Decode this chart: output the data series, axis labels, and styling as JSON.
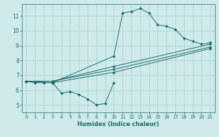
{
  "xlabel": "Humidex (Indice chaleur)",
  "xlim": [
    -0.5,
    21.5
  ],
  "ylim": [
    4.5,
    11.8
  ],
  "xticks": [
    0,
    1,
    2,
    3,
    4,
    5,
    6,
    7,
    8,
    9,
    10,
    11,
    12,
    13,
    14,
    15,
    16,
    17,
    18,
    19,
    20,
    21
  ],
  "yticks": [
    5,
    6,
    7,
    8,
    9,
    10,
    11
  ],
  "bg_color": "#ceeaea",
  "grid_color": "#b8d8d8",
  "line_color": "#1a6b6b",
  "series": [
    {
      "x": [
        0,
        1,
        2,
        3
      ],
      "y": [
        6.6,
        6.5,
        6.5,
        6.5
      ]
    },
    {
      "x": [
        3,
        4,
        5,
        6,
        7,
        8,
        9,
        10
      ],
      "y": [
        6.5,
        5.8,
        5.9,
        5.7,
        5.4,
        5.0,
        5.1,
        6.5
      ]
    },
    {
      "x": [
        3,
        10,
        11,
        12,
        13,
        14,
        15,
        16,
        17,
        18,
        19,
        20,
        21
      ],
      "y": [
        6.5,
        8.3,
        11.2,
        11.3,
        11.5,
        11.2,
        10.4,
        10.3,
        10.1,
        9.5,
        9.3,
        9.1,
        9.2
      ]
    },
    {
      "x": [
        0,
        3,
        10,
        21
      ],
      "y": [
        6.6,
        6.6,
        7.6,
        9.1
      ]
    },
    {
      "x": [
        0,
        3,
        10,
        21
      ],
      "y": [
        6.6,
        6.6,
        7.4,
        8.9
      ]
    },
    {
      "x": [
        0,
        3,
        10,
        21
      ],
      "y": [
        6.6,
        6.5,
        7.2,
        8.8
      ]
    }
  ]
}
